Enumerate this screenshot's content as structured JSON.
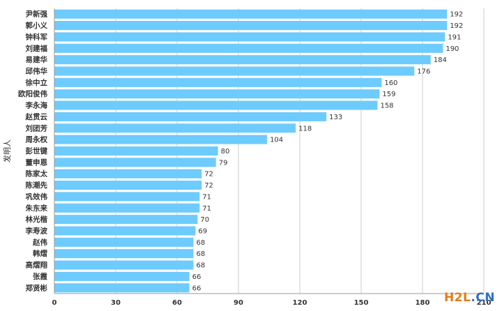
{
  "chart_data": {
    "type": "bar",
    "orientation": "horizontal",
    "categories": [
      "尹新强",
      "郭小义",
      "钟科军",
      "刘建福",
      "易建华",
      "邱伟华",
      "徐中立",
      "欧阳俊伟",
      "李永海",
      "赵贯云",
      "刘团芳",
      "周永权",
      "彭世键",
      "董申恩",
      "陈家太",
      "陈潮先",
      "巩效伟",
      "朱东来",
      "林光楷",
      "李寿波",
      "赵伟",
      "韩熠",
      "高熠翔",
      "张霞",
      "郑贤彬"
    ],
    "values": [
      192,
      192,
      191,
      190,
      184,
      176,
      160,
      159,
      158,
      133,
      118,
      104,
      80,
      79,
      72,
      72,
      71,
      71,
      70,
      69,
      68,
      68,
      68,
      66,
      66
    ],
    "ylabel": "发明人",
    "xlabel": "",
    "xticks": [
      "0",
      "30",
      "60",
      "90",
      "120",
      "150",
      "180",
      "210"
    ],
    "xlim": [
      0,
      210
    ],
    "bar_color": "#6ecbfd",
    "grid": true,
    "data_labels": true
  },
  "watermark": {
    "part1": "H2L",
    "part2": ".CN"
  }
}
